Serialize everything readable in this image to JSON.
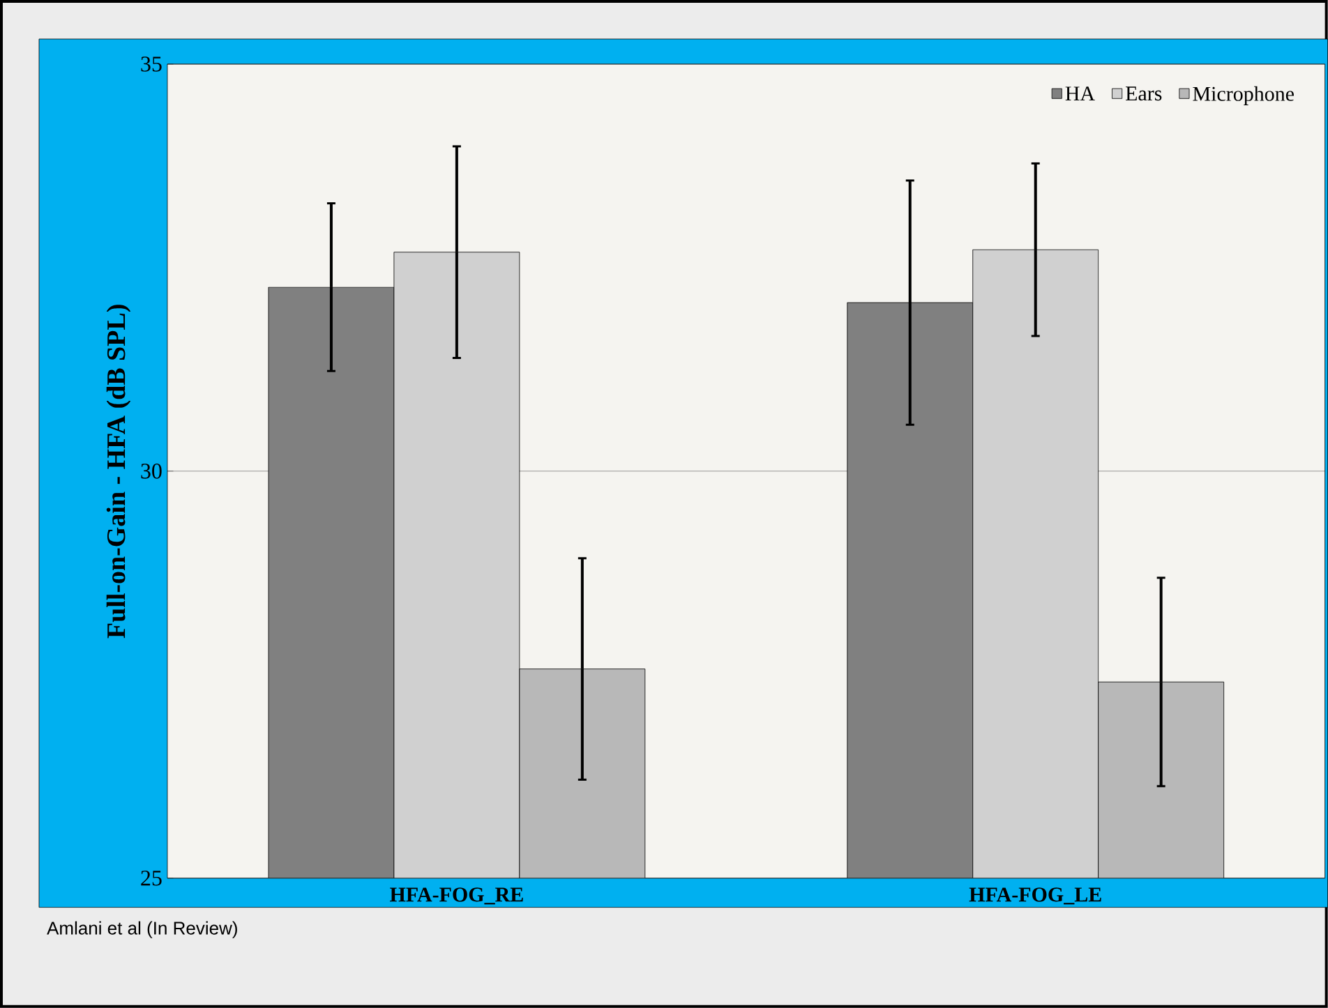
{
  "chart_data": {
    "type": "bar",
    "ylabel": "Full-on-Gain - HFA (dB SPL)",
    "categories": [
      "HFA-FOG_RE",
      "HFA-FOG_LE"
    ],
    "series": [
      {
        "name": "HA",
        "color": "#808080",
        "values": [
          32.26,
          32.07
        ],
        "errors": [
          1.03,
          1.5
        ]
      },
      {
        "name": "Ears",
        "color": "#d0d0d0",
        "values": [
          32.69,
          32.72
        ],
        "errors": [
          1.3,
          1.06
        ]
      },
      {
        "name": "Microphone",
        "color": "#b8b8b8",
        "values": [
          27.57,
          27.41
        ],
        "errors": [
          1.36,
          1.28
        ]
      }
    ],
    "ylim": [
      25,
      35
    ],
    "yticks": [
      25,
      30,
      35
    ],
    "grid": "y",
    "legend": "top right",
    "annotations": [
      "Amlani et al (In Review)"
    ]
  }
}
